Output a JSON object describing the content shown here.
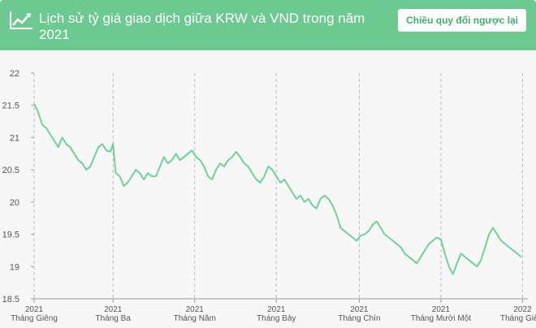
{
  "header": {
    "title": "Lịch sử tỷ giá giao dịch giữa KRW và VND trong năm 2021",
    "swap_button": "Chiều quy đổi ngược lại"
  },
  "colors": {
    "accent": "#6cc990",
    "line": "#6fd19a",
    "background": "#f7f7f7",
    "grid": "#bbbbbb"
  },
  "icons": {
    "header_icon": "line-chart-icon"
  },
  "chart_data": {
    "type": "line",
    "title": "",
    "xlabel": "",
    "ylabel": "",
    "ylim": [
      18.5,
      22
    ],
    "yticks": [
      18.5,
      19,
      19.5,
      20,
      20.5,
      21,
      21.5,
      22
    ],
    "grid": "vertical-dashed",
    "legend": "none",
    "xticks": [
      {
        "year": "2021",
        "month": "Tháng Giêng",
        "date": "2021-01-01"
      },
      {
        "year": "2021",
        "month": "Tháng Ba",
        "date": "2021-03-01"
      },
      {
        "year": "2021",
        "month": "Tháng Năm",
        "date": "2021-05-01"
      },
      {
        "year": "2021",
        "month": "Tháng Bảy",
        "date": "2021-07-01"
      },
      {
        "year": "2021",
        "month": "Tháng Chín",
        "date": "2021-09-01"
      },
      {
        "year": "2021",
        "month": "Tháng Mười Một",
        "date": "2021-11-01"
      },
      {
        "year": "2022",
        "month": "Tháng Giê...",
        "date": "2022-01-01"
      }
    ],
    "series": [
      {
        "values": [
          [
            "2021-01-01",
            21.52
          ],
          [
            "2021-01-04",
            21.4
          ],
          [
            "2021-01-07",
            21.2
          ],
          [
            "2021-01-10",
            21.15
          ],
          [
            "2021-01-13",
            21.05
          ],
          [
            "2021-01-16",
            20.95
          ],
          [
            "2021-01-19",
            20.85
          ],
          [
            "2021-01-22",
            21.0
          ],
          [
            "2021-01-25",
            20.9
          ],
          [
            "2021-01-28",
            20.85
          ],
          [
            "2021-01-31",
            20.75
          ],
          [
            "2021-02-03",
            20.65
          ],
          [
            "2021-02-06",
            20.6
          ],
          [
            "2021-02-09",
            20.5
          ],
          [
            "2021-02-12",
            20.55
          ],
          [
            "2021-02-15",
            20.7
          ],
          [
            "2021-02-18",
            20.85
          ],
          [
            "2021-02-21",
            20.9
          ],
          [
            "2021-02-24",
            20.8
          ],
          [
            "2021-02-27",
            20.78
          ],
          [
            "2021-03-01",
            20.9
          ],
          [
            "2021-03-03",
            20.45
          ],
          [
            "2021-03-06",
            20.4
          ],
          [
            "2021-03-09",
            20.25
          ],
          [
            "2021-03-12",
            20.3
          ],
          [
            "2021-03-15",
            20.4
          ],
          [
            "2021-03-18",
            20.5
          ],
          [
            "2021-03-21",
            20.45
          ],
          [
            "2021-03-24",
            20.35
          ],
          [
            "2021-03-27",
            20.45
          ],
          [
            "2021-03-30",
            20.4
          ],
          [
            "2021-04-02",
            20.4
          ],
          [
            "2021-04-05",
            20.55
          ],
          [
            "2021-04-08",
            20.7
          ],
          [
            "2021-04-11",
            20.6
          ],
          [
            "2021-04-14",
            20.65
          ],
          [
            "2021-04-17",
            20.75
          ],
          [
            "2021-04-20",
            20.65
          ],
          [
            "2021-04-23",
            20.7
          ],
          [
            "2021-04-26",
            20.75
          ],
          [
            "2021-04-29",
            20.8
          ],
          [
            "2021-05-02",
            20.7
          ],
          [
            "2021-05-05",
            20.65
          ],
          [
            "2021-05-08",
            20.55
          ],
          [
            "2021-05-11",
            20.4
          ],
          [
            "2021-05-14",
            20.35
          ],
          [
            "2021-05-17",
            20.5
          ],
          [
            "2021-05-20",
            20.6
          ],
          [
            "2021-05-23",
            20.55
          ],
          [
            "2021-05-26",
            20.65
          ],
          [
            "2021-05-29",
            20.7
          ],
          [
            "2021-06-01",
            20.78
          ],
          [
            "2021-06-04",
            20.7
          ],
          [
            "2021-06-07",
            20.6
          ],
          [
            "2021-06-10",
            20.55
          ],
          [
            "2021-06-13",
            20.45
          ],
          [
            "2021-06-16",
            20.35
          ],
          [
            "2021-06-19",
            20.3
          ],
          [
            "2021-06-22",
            20.4
          ],
          [
            "2021-06-25",
            20.55
          ],
          [
            "2021-06-28",
            20.5
          ],
          [
            "2021-07-01",
            20.4
          ],
          [
            "2021-07-04",
            20.3
          ],
          [
            "2021-07-07",
            20.35
          ],
          [
            "2021-07-10",
            20.25
          ],
          [
            "2021-07-13",
            20.15
          ],
          [
            "2021-07-16",
            20.05
          ],
          [
            "2021-07-19",
            20.1
          ],
          [
            "2021-07-22",
            20.0
          ],
          [
            "2021-07-25",
            20.05
          ],
          [
            "2021-07-28",
            19.95
          ],
          [
            "2021-07-31",
            19.9
          ],
          [
            "2021-08-03",
            20.05
          ],
          [
            "2021-08-06",
            20.1
          ],
          [
            "2021-08-09",
            20.05
          ],
          [
            "2021-08-12",
            19.95
          ],
          [
            "2021-08-15",
            19.8
          ],
          [
            "2021-08-18",
            19.6
          ],
          [
            "2021-08-21",
            19.55
          ],
          [
            "2021-08-24",
            19.5
          ],
          [
            "2021-08-27",
            19.45
          ],
          [
            "2021-08-30",
            19.4
          ],
          [
            "2021-09-02",
            19.48
          ],
          [
            "2021-09-05",
            19.5
          ],
          [
            "2021-09-08",
            19.55
          ],
          [
            "2021-09-11",
            19.65
          ],
          [
            "2021-09-14",
            19.7
          ],
          [
            "2021-09-17",
            19.6
          ],
          [
            "2021-09-20",
            19.5
          ],
          [
            "2021-09-23",
            19.45
          ],
          [
            "2021-09-26",
            19.4
          ],
          [
            "2021-09-29",
            19.35
          ],
          [
            "2021-10-02",
            19.3
          ],
          [
            "2021-10-05",
            19.2
          ],
          [
            "2021-10-08",
            19.15
          ],
          [
            "2021-10-11",
            19.1
          ],
          [
            "2021-10-14",
            19.05
          ],
          [
            "2021-10-17",
            19.15
          ],
          [
            "2021-10-20",
            19.25
          ],
          [
            "2021-10-23",
            19.35
          ],
          [
            "2021-10-26",
            19.4
          ],
          [
            "2021-10-29",
            19.45
          ],
          [
            "2021-11-01",
            19.42
          ],
          [
            "2021-11-04",
            19.2
          ],
          [
            "2021-11-07",
            19.0
          ],
          [
            "2021-11-10",
            18.88
          ],
          [
            "2021-11-13",
            19.05
          ],
          [
            "2021-11-16",
            19.2
          ],
          [
            "2021-11-19",
            19.15
          ],
          [
            "2021-11-22",
            19.1
          ],
          [
            "2021-11-25",
            19.05
          ],
          [
            "2021-11-28",
            19.0
          ],
          [
            "2021-12-01",
            19.1
          ],
          [
            "2021-12-04",
            19.3
          ],
          [
            "2021-12-07",
            19.5
          ],
          [
            "2021-12-10",
            19.6
          ],
          [
            "2021-12-13",
            19.5
          ],
          [
            "2021-12-16",
            19.4
          ],
          [
            "2021-12-19",
            19.35
          ],
          [
            "2021-12-22",
            19.3
          ],
          [
            "2021-12-25",
            19.25
          ],
          [
            "2021-12-28",
            19.2
          ],
          [
            "2021-12-31",
            19.15
          ]
        ]
      }
    ]
  }
}
